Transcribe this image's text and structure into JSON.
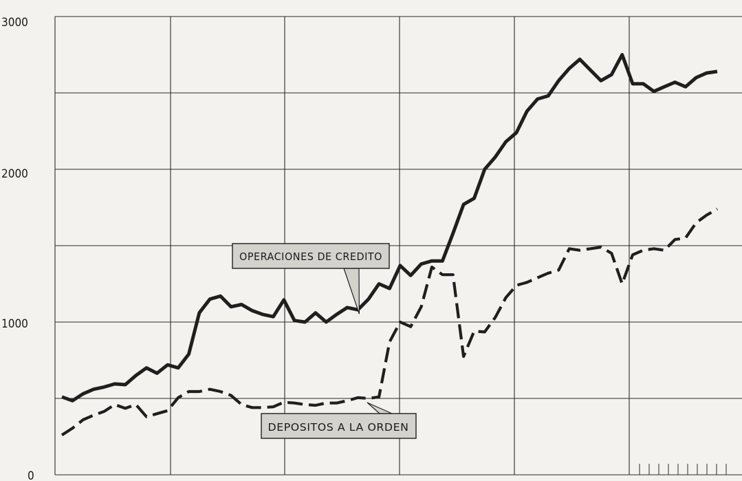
{
  "chart_data": {
    "type": "line",
    "title": "",
    "xlabel": "",
    "ylabel": "",
    "ylim": [
      0,
      3000
    ],
    "y_ticks": [
      "3000",
      "2000",
      "1000",
      "0"
    ],
    "grid": true,
    "series": [
      {
        "name": "OPERACIONES DE CREDITO",
        "style": "solid",
        "color": "#1f1f1f",
        "values": [
          510,
          485,
          530,
          560,
          575,
          595,
          590,
          650,
          700,
          665,
          720,
          700,
          790,
          1060,
          1150,
          1170,
          1100,
          1115,
          1075,
          1050,
          1035,
          1145,
          1010,
          1000,
          1060,
          1000,
          1050,
          1095,
          1080,
          1150,
          1250,
          1220,
          1370,
          1305,
          1380,
          1400,
          1400,
          1580,
          1770,
          1810,
          2000,
          2080,
          2180,
          2240,
          2380,
          2460,
          2480,
          2580,
          2660,
          2720,
          2650,
          2580,
          2620,
          2750,
          2560,
          2560,
          2510,
          2540,
          2570,
          2540,
          2600,
          2630,
          2640
        ]
      },
      {
        "name": "DEPOSITOS A LA ORDEN",
        "style": "dashed",
        "color": "#1f1f1f",
        "values": [
          260,
          305,
          360,
          390,
          415,
          460,
          435,
          460,
          380,
          400,
          420,
          505,
          545,
          545,
          560,
          545,
          520,
          460,
          440,
          440,
          445,
          475,
          470,
          460,
          455,
          470,
          470,
          485,
          505,
          500,
          510,
          870,
          1000,
          970,
          1100,
          1360,
          1310,
          1310,
          775,
          940,
          935,
          1030,
          1160,
          1240,
          1260,
          1290,
          1320,
          1340,
          1480,
          1470,
          1480,
          1490,
          1450,
          1250,
          1440,
          1470,
          1480,
          1470,
          1540,
          1550,
          1650,
          1700,
          1740
        ]
      }
    ],
    "annotations": [
      {
        "text": "OPERACIONES DE CREDITO",
        "series": "OPERACIONES DE CREDITO"
      },
      {
        "text": "DEPOSITOS A LA ORDEN",
        "series": "DEPOSITOS A LA ORDEN"
      }
    ]
  }
}
